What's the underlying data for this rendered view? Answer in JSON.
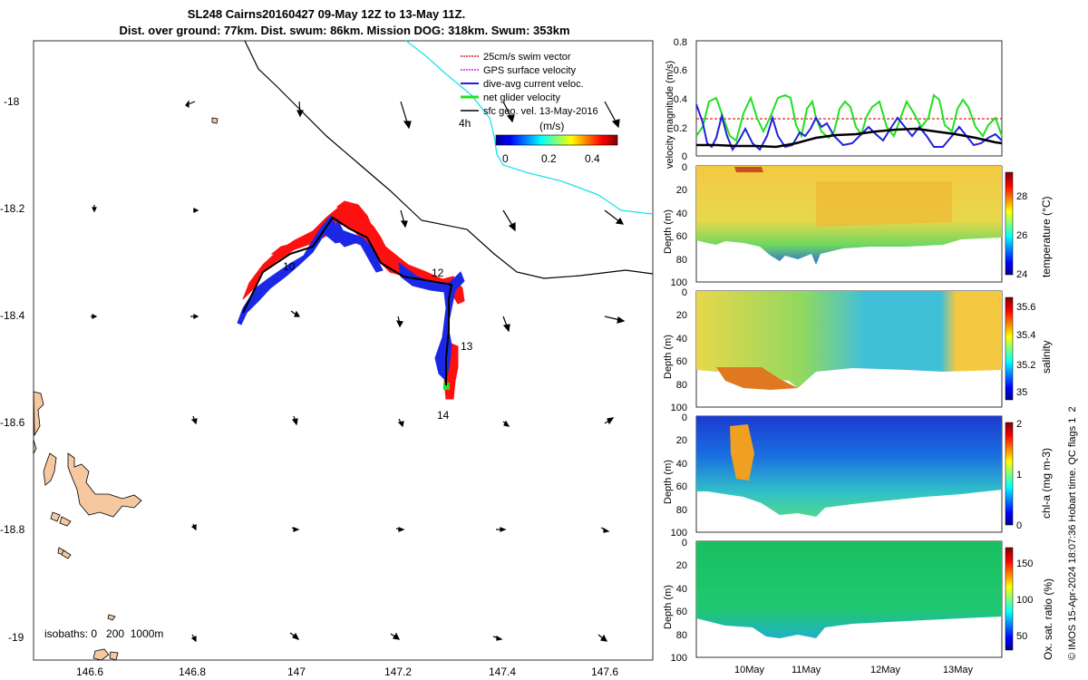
{
  "title": {
    "line1": "SL248 Cairns20160427 09-May 12Z to 13-May 11Z.",
    "line2": "Dist. over ground: 77km. Dist. swum: 86km. Mission DOG: 318km. Swum: 353km"
  },
  "map": {
    "lon_ticks": [
      "146.6",
      "146.8",
      "147",
      "147.2",
      "147.4",
      "147.6"
    ],
    "lat_ticks": [
      "-18",
      "-18.2",
      "-18.4",
      "-18.6",
      "-18.8",
      "-19"
    ],
    "legend": [
      {
        "label": "25cm/s swim vector",
        "color": "#e02020"
      },
      {
        "label": "GPS surface velocity",
        "color": "#e020e0"
      },
      {
        "label": "dive-avg current veloc.",
        "color": "#2020e0"
      },
      {
        "label": "net glider velocity",
        "color": "#20e020"
      },
      {
        "label": "sfc geo. vel. 13-May-2016",
        "color": "#000000"
      }
    ],
    "scale_label": "4h",
    "colorbar_title": "(m/s)",
    "colorbar_ticks": [
      "0",
      "0.2",
      "0.4"
    ],
    "day_labels": [
      "10",
      "12",
      "13",
      "14"
    ],
    "isobaths": "isobaths: 0   200  1000m",
    "colors": {
      "land": "#f5c8a0",
      "swim": "#ff1010",
      "current": "#1a28e6",
      "shelf": "#20e0e8"
    }
  },
  "panels": {
    "velocity": {
      "ylabel": "velocity magnitude (m/s)",
      "yticks": [
        "0",
        "0.2",
        "0.4",
        "0.6",
        "0.8"
      ]
    },
    "depth_ylabel": "Depth (m)",
    "depth_ticks": [
      "0",
      "20",
      "40",
      "60",
      "80",
      "100"
    ],
    "temperature": {
      "label": "temperature (°C)",
      "ticks": [
        "24",
        "26",
        "28"
      ]
    },
    "salinity": {
      "label": "salinity",
      "ticks": [
        "35",
        "35.2",
        "35.4",
        "35.6"
      ]
    },
    "chla": {
      "label": "chl-a (mg m-3)",
      "ticks": [
        "0",
        "1",
        "2"
      ]
    },
    "oxygen": {
      "label": "Ox. sat. ratio (%)",
      "ticks": [
        "50",
        "100",
        "150"
      ]
    },
    "date_ticks": [
      "10May",
      "11May",
      "12May",
      "13May"
    ]
  },
  "footer_vertical": "© IMOS 15-Apr-2024 18:07:36 Hobart time. QC flags 1  2"
}
